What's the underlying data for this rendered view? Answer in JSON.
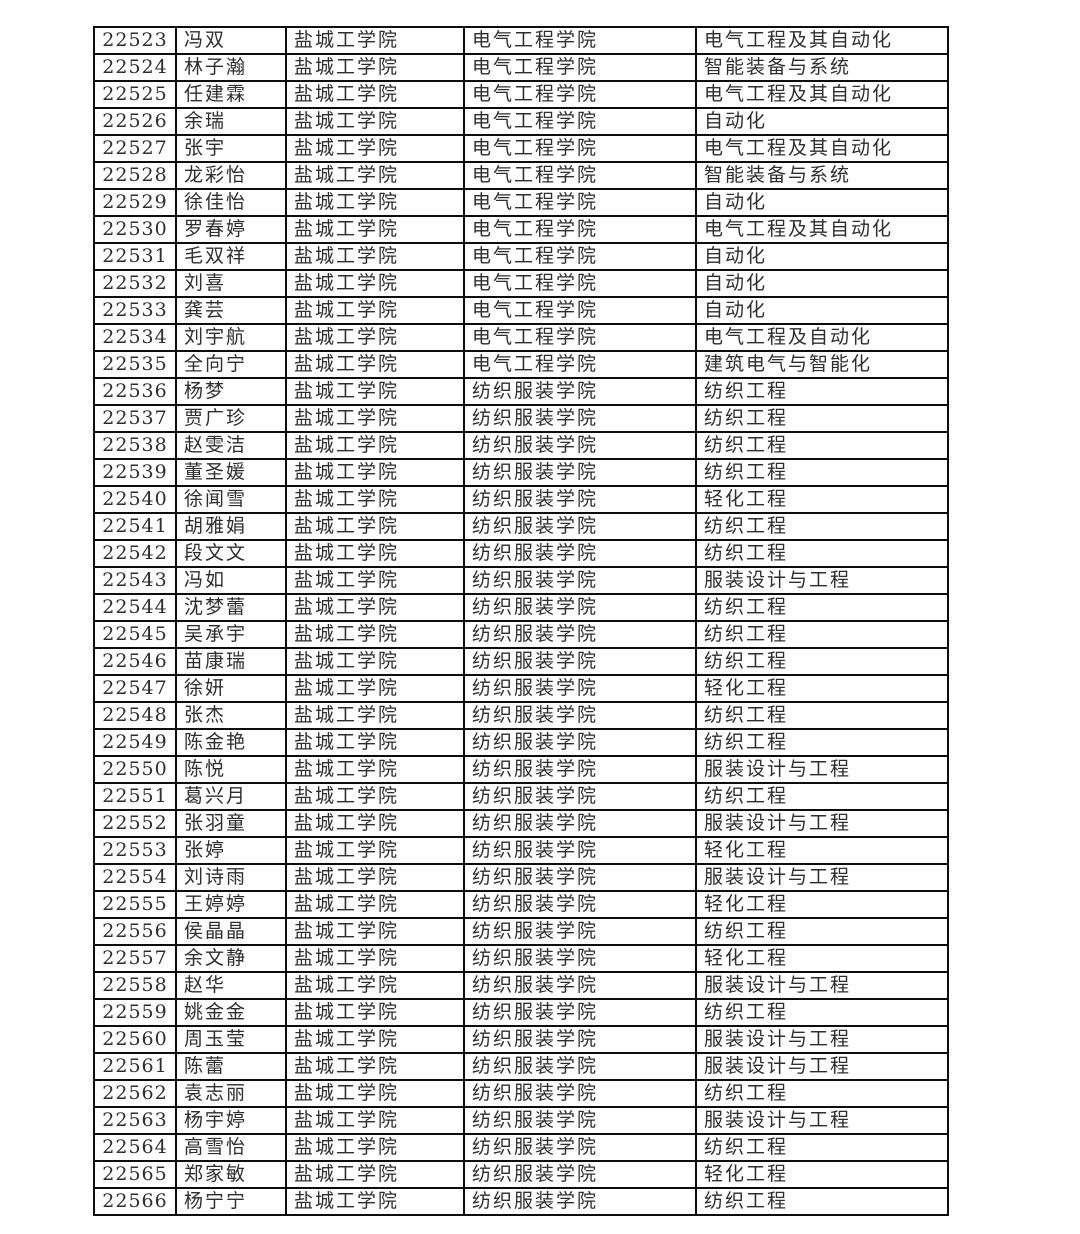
{
  "colors": {
    "background": "#ffffff",
    "border": "#0d0d0d",
    "text": "#2e2e2e"
  },
  "table": {
    "columns": [
      {
        "key": "student-id"
      },
      {
        "key": "name"
      },
      {
        "key": "university"
      },
      {
        "key": "college"
      },
      {
        "key": "major"
      }
    ],
    "rows": [
      [
        "22523",
        "冯双",
        "盐城工学院",
        "电气工程学院",
        "电气工程及其自动化"
      ],
      [
        "22524",
        "林子瀚",
        "盐城工学院",
        "电气工程学院",
        "智能装备与系统"
      ],
      [
        "22525",
        "任建霖",
        "盐城工学院",
        "电气工程学院",
        "电气工程及其自动化"
      ],
      [
        "22526",
        "余瑞",
        "盐城工学院",
        "电气工程学院",
        "自动化"
      ],
      [
        "22527",
        "张宇",
        "盐城工学院",
        "电气工程学院",
        "电气工程及其自动化"
      ],
      [
        "22528",
        "龙彩怡",
        "盐城工学院",
        "电气工程学院",
        "智能装备与系统"
      ],
      [
        "22529",
        "徐佳怡",
        "盐城工学院",
        "电气工程学院",
        "自动化"
      ],
      [
        "22530",
        "罗春婷",
        "盐城工学院",
        "电气工程学院",
        "电气工程及其自动化"
      ],
      [
        "22531",
        "毛双祥",
        "盐城工学院",
        "电气工程学院",
        "自动化"
      ],
      [
        "22532",
        "刘喜",
        "盐城工学院",
        "电气工程学院",
        "自动化"
      ],
      [
        "22533",
        "龚芸",
        "盐城工学院",
        "电气工程学院",
        "自动化"
      ],
      [
        "22534",
        "刘宇航",
        "盐城工学院",
        "电气工程学院",
        "电气工程及自动化"
      ],
      [
        "22535",
        "全向宁",
        "盐城工学院",
        "电气工程学院",
        "建筑电气与智能化"
      ],
      [
        "22536",
        "杨梦",
        "盐城工学院",
        "纺织服装学院",
        "纺织工程"
      ],
      [
        "22537",
        "贾广珍",
        "盐城工学院",
        "纺织服装学院",
        "纺织工程"
      ],
      [
        "22538",
        "赵雯洁",
        "盐城工学院",
        "纺织服装学院",
        "纺织工程"
      ],
      [
        "22539",
        "董圣媛",
        "盐城工学院",
        "纺织服装学院",
        "纺织工程"
      ],
      [
        "22540",
        "徐闻雪",
        "盐城工学院",
        "纺织服装学院",
        "轻化工程"
      ],
      [
        "22541",
        "胡雅娟",
        "盐城工学院",
        "纺织服装学院",
        "纺织工程"
      ],
      [
        "22542",
        "段文文",
        "盐城工学院",
        "纺织服装学院",
        "纺织工程"
      ],
      [
        "22543",
        "冯如",
        "盐城工学院",
        "纺织服装学院",
        "服装设计与工程"
      ],
      [
        "22544",
        "沈梦蕾",
        "盐城工学院",
        "纺织服装学院",
        "纺织工程"
      ],
      [
        "22545",
        "吴承宇",
        "盐城工学院",
        "纺织服装学院",
        "纺织工程"
      ],
      [
        "22546",
        "苗康瑞",
        "盐城工学院",
        "纺织服装学院",
        "纺织工程"
      ],
      [
        "22547",
        "徐妍",
        "盐城工学院",
        "纺织服装学院",
        "轻化工程"
      ],
      [
        "22548",
        "张杰",
        "盐城工学院",
        "纺织服装学院",
        "纺织工程"
      ],
      [
        "22549",
        "陈金艳",
        "盐城工学院",
        "纺织服装学院",
        "纺织工程"
      ],
      [
        "22550",
        "陈悦",
        "盐城工学院",
        "纺织服装学院",
        "服装设计与工程"
      ],
      [
        "22551",
        "葛兴月",
        "盐城工学院",
        "纺织服装学院",
        "纺织工程"
      ],
      [
        "22552",
        "张羽童",
        "盐城工学院",
        "纺织服装学院",
        "服装设计与工程"
      ],
      [
        "22553",
        "张婷",
        "盐城工学院",
        "纺织服装学院",
        "轻化工程"
      ],
      [
        "22554",
        "刘诗雨",
        "盐城工学院",
        "纺织服装学院",
        "服装设计与工程"
      ],
      [
        "22555",
        "王婷婷",
        "盐城工学院",
        "纺织服装学院",
        "轻化工程"
      ],
      [
        "22556",
        "侯晶晶",
        "盐城工学院",
        "纺织服装学院",
        "纺织工程"
      ],
      [
        "22557",
        "余文静",
        "盐城工学院",
        "纺织服装学院",
        "轻化工程"
      ],
      [
        "22558",
        "赵华",
        "盐城工学院",
        "纺织服装学院",
        "服装设计与工程"
      ],
      [
        "22559",
        "姚金金",
        "盐城工学院",
        "纺织服装学院",
        "纺织工程"
      ],
      [
        "22560",
        "周玉莹",
        "盐城工学院",
        "纺织服装学院",
        "服装设计与工程"
      ],
      [
        "22561",
        "陈蕾",
        "盐城工学院",
        "纺织服装学院",
        "服装设计与工程"
      ],
      [
        "22562",
        "袁志丽",
        "盐城工学院",
        "纺织服装学院",
        "纺织工程"
      ],
      [
        "22563",
        "杨宇婷",
        "盐城工学院",
        "纺织服装学院",
        "服装设计与工程"
      ],
      [
        "22564",
        "高雪怡",
        "盐城工学院",
        "纺织服装学院",
        "纺织工程"
      ],
      [
        "22565",
        "郑家敏",
        "盐城工学院",
        "纺织服装学院",
        "轻化工程"
      ],
      [
        "22566",
        "杨宁宁",
        "盐城工学院",
        "纺织服装学院",
        "纺织工程"
      ]
    ]
  }
}
